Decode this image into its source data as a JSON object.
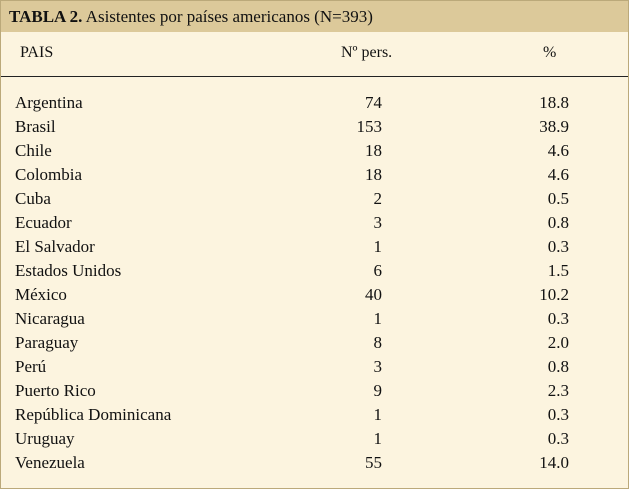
{
  "table": {
    "title_bold": "TABLA 2.",
    "title_rest": " Asistentes por países americanos (N=393)",
    "headers": {
      "pais": "PAIS",
      "pers": "Nº pers.",
      "pct": "%"
    },
    "rows": [
      {
        "pais": "Argentina",
        "pers": "74",
        "pct": "18.8"
      },
      {
        "pais": "Brasil",
        "pers": "153",
        "pct": "38.9"
      },
      {
        "pais": "Chile",
        "pers": "18",
        "pct": "4.6"
      },
      {
        "pais": "Colombia",
        "pers": "18",
        "pct": "4.6"
      },
      {
        "pais": "Cuba",
        "pers": "2",
        "pct": "0.5"
      },
      {
        "pais": "Ecuador",
        "pers": "3",
        "pct": "0.8"
      },
      {
        "pais": "El Salvador",
        "pers": "1",
        "pct": "0.3"
      },
      {
        "pais": "Estados Unidos",
        "pers": "6",
        "pct": "1.5"
      },
      {
        "pais": "México",
        "pers": "40",
        "pct": "10.2"
      },
      {
        "pais": "Nicaragua",
        "pers": "1",
        "pct": "0.3"
      },
      {
        "pais": "Paraguay",
        "pers": "8",
        "pct": "2.0"
      },
      {
        "pais": "Perú",
        "pers": "3",
        "pct": "0.8"
      },
      {
        "pais": "Puerto Rico",
        "pers": "9",
        "pct": "2.3"
      },
      {
        "pais": "República Dominicana",
        "pers": "1",
        "pct": "0.3"
      },
      {
        "pais": "Uruguay",
        "pers": "1",
        "pct": "0.3"
      },
      {
        "pais": "Venezuela",
        "pers": "55",
        "pct": "14.0"
      }
    ]
  }
}
